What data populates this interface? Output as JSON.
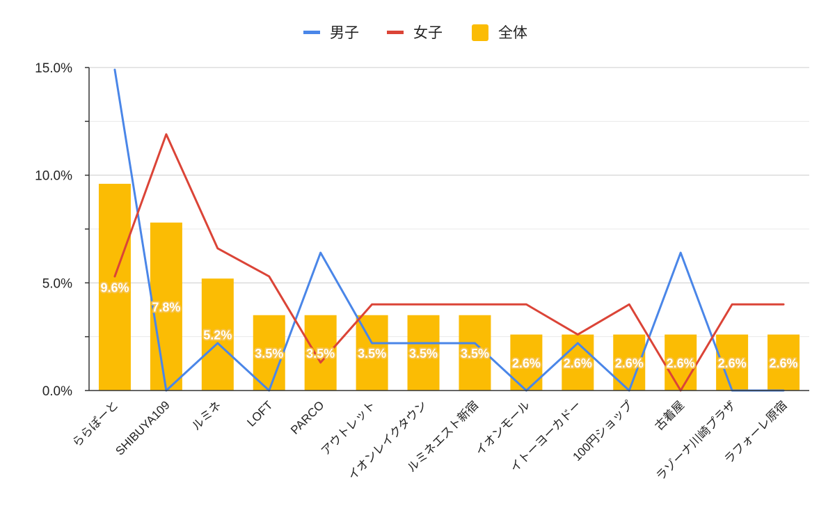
{
  "chart_data": {
    "type": "bar",
    "categories": [
      "ららぽーと",
      "SHIBUYA109",
      "ルミネ",
      "LOFT",
      "PARCO",
      "アウトレット",
      "イオンレイクタウン",
      "ルミネエスト新宿",
      "イオンモール",
      "イトーヨーカドー",
      "100円ショップ",
      "古着屋",
      "ラゾーナ川崎プラザ",
      "ラフォーレ原宿"
    ],
    "series": [
      {
        "name": "男子",
        "kind": "line",
        "color": "#4a86e8",
        "values": [
          14.9,
          0.0,
          2.2,
          0.0,
          6.4,
          2.2,
          2.2,
          2.2,
          0.0,
          2.2,
          0.0,
          6.4,
          0.0,
          0.0
        ]
      },
      {
        "name": "女子",
        "kind": "line",
        "color": "#db4437",
        "values": [
          5.3,
          11.9,
          6.6,
          5.3,
          1.3,
          4.0,
          4.0,
          4.0,
          4.0,
          2.6,
          4.0,
          0.0,
          4.0,
          4.0
        ]
      },
      {
        "name": "全体",
        "kind": "bar",
        "color": "#fbbc04",
        "values": [
          9.6,
          7.8,
          5.2,
          3.5,
          3.5,
          3.5,
          3.5,
          3.5,
          2.6,
          2.6,
          2.6,
          2.6,
          2.6,
          2.6
        ]
      }
    ],
    "data_labels": [
      "9.6%",
      "7.8%",
      "5.2%",
      "3.5%",
      "3.5%",
      "3.5%",
      "3.5%",
      "3.5%",
      "2.6%",
      "2.6%",
      "2.6%",
      "2.6%",
      "2.6%",
      "2.6%"
    ],
    "yticks": [
      0,
      5,
      10,
      15
    ],
    "ytick_labels": [
      "0.0%",
      "5.0%",
      "10.0%",
      "15.0%"
    ],
    "ylim": [
      0,
      15
    ],
    "title": "",
    "xlabel": "",
    "ylabel": "",
    "grid": true,
    "legend_position": "top-center"
  }
}
